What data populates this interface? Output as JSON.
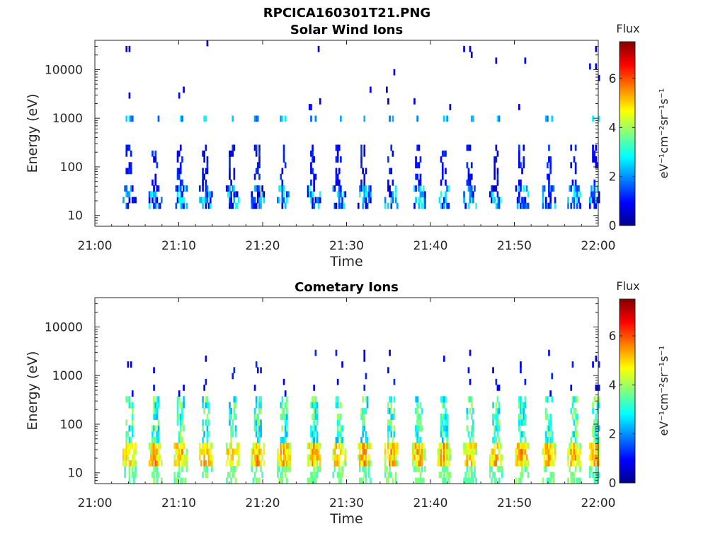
{
  "figure_title": "RPCICA160301T21.PNG",
  "chart_data": [
    {
      "type": "heatmap",
      "title": "Solar Wind Ions",
      "xlabel": "Time",
      "ylabel": "Energy (eV)",
      "x_ticks": [
        "21:00",
        "21:10",
        "21:20",
        "21:30",
        "21:40",
        "21:50",
        "22:00"
      ],
      "xlim": [
        "21:00",
        "22:00"
      ],
      "y_scale": "log",
      "y_ticks": [
        "10",
        "100",
        "1000",
        "10000"
      ],
      "ylim": [
        6,
        40000
      ],
      "colorbar": {
        "label": "Flux",
        "unit": "eV⁻¹cm⁻²sr⁻¹s⁻¹",
        "ticks": [
          "0",
          "2",
          "4",
          "6"
        ],
        "range": [
          0,
          7.5
        ],
        "colormap": "jet"
      },
      "bursts_minutes": [
        3.8,
        6.9,
        9.9,
        12.9,
        16.1,
        19.1,
        22.2,
        25.8,
        28.8,
        31.8,
        35.0,
        38.3,
        41.3,
        44.4,
        47.5,
        50.6,
        53.8,
        56.8,
        59.4
      ],
      "low_band_energy_eV": [
        12,
        45
      ],
      "low_band_flux": [
        0.4,
        3.2
      ],
      "mid_band_energy_eV": [
        800,
        1200
      ],
      "mid_band_flux": [
        1.5,
        3.0
      ]
    },
    {
      "type": "heatmap",
      "title": "Cometary Ions",
      "xlabel": "Time",
      "ylabel": "Energy (eV)",
      "x_ticks": [
        "21:00",
        "21:10",
        "21:20",
        "21:30",
        "21:40",
        "21:50",
        "22:00"
      ],
      "xlim": [
        "21:00",
        "22:00"
      ],
      "y_scale": "log",
      "y_ticks": [
        "10",
        "100",
        "1000",
        "10000"
      ],
      "ylim": [
        6,
        40000
      ],
      "colorbar": {
        "label": "Flux",
        "unit": "eV⁻¹cm⁻²sr⁻¹s⁻¹",
        "ticks": [
          "0",
          "2",
          "4",
          "6"
        ],
        "range": [
          0,
          7.5
        ],
        "colormap": "jet"
      },
      "bursts_minutes": [
        3.8,
        6.9,
        9.9,
        12.9,
        16.1,
        19.1,
        22.2,
        25.8,
        28.8,
        31.8,
        35.0,
        38.3,
        41.3,
        44.4,
        47.5,
        50.6,
        53.8,
        56.8,
        59.4
      ],
      "core_energy_eV": [
        12,
        45
      ],
      "core_flux": [
        4.5,
        6.0
      ],
      "plume_energy_eV": [
        45,
        400
      ],
      "plume_flux": [
        2.2,
        4.2
      ]
    }
  ]
}
